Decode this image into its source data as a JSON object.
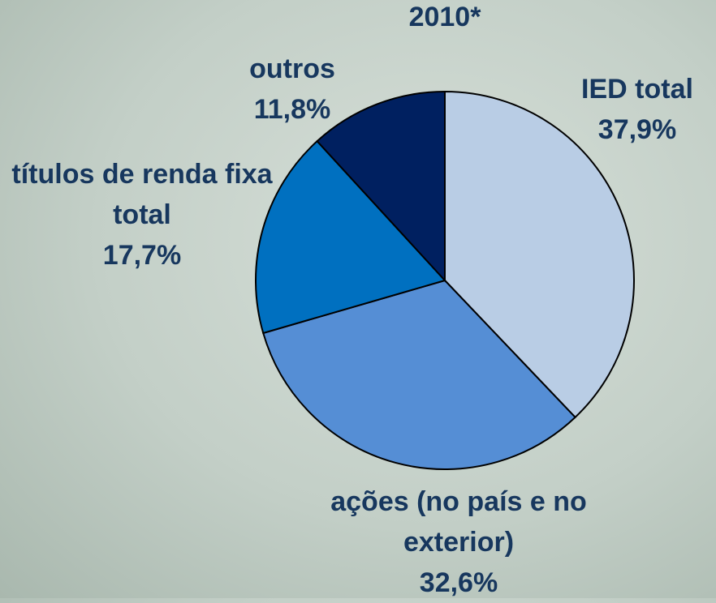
{
  "chart_data": {
    "type": "pie",
    "title": "2010*",
    "categories": [
      "IED total",
      "ações (no país e no exterior)",
      "títulos de renda fixa total",
      "outros"
    ],
    "values": [
      37.9,
      32.6,
      17.7,
      11.8
    ],
    "value_labels": [
      "37,9%",
      "32,6%",
      "17,7%",
      "11,8%"
    ],
    "colors": [
      "#b9cde5",
      "#558ed5",
      "#0070c0",
      "#002060"
    ]
  }
}
